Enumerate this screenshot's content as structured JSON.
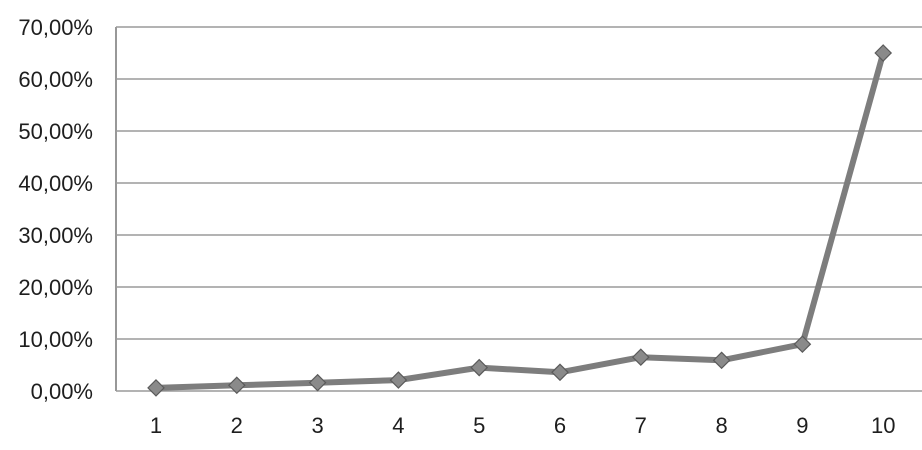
{
  "chart_data": {
    "type": "line",
    "title": "",
    "xlabel": "",
    "ylabel": "",
    "x": [
      "1",
      "2",
      "3",
      "4",
      "5",
      "6",
      "7",
      "8",
      "9",
      "10"
    ],
    "series": [
      {
        "values": [
          0.6,
          1.1,
          1.6,
          2.1,
          4.5,
          3.6,
          6.5,
          5.9,
          9.0,
          65.0
        ]
      }
    ],
    "yticks": [
      0,
      10,
      20,
      30,
      40,
      50,
      60,
      70
    ],
    "ytick_labels": [
      "0,00%",
      "10,00%",
      "20,00%",
      "30,00%",
      "40,00%",
      "50,00%",
      "60,00%",
      "70,00%"
    ],
    "ylim": [
      0,
      70
    ],
    "grid": true,
    "legend": "none",
    "marker": "diamond",
    "colors": {
      "line": "#7d7d7d",
      "marker": "#8a8a8a",
      "grid": "#9a9a9a"
    }
  }
}
